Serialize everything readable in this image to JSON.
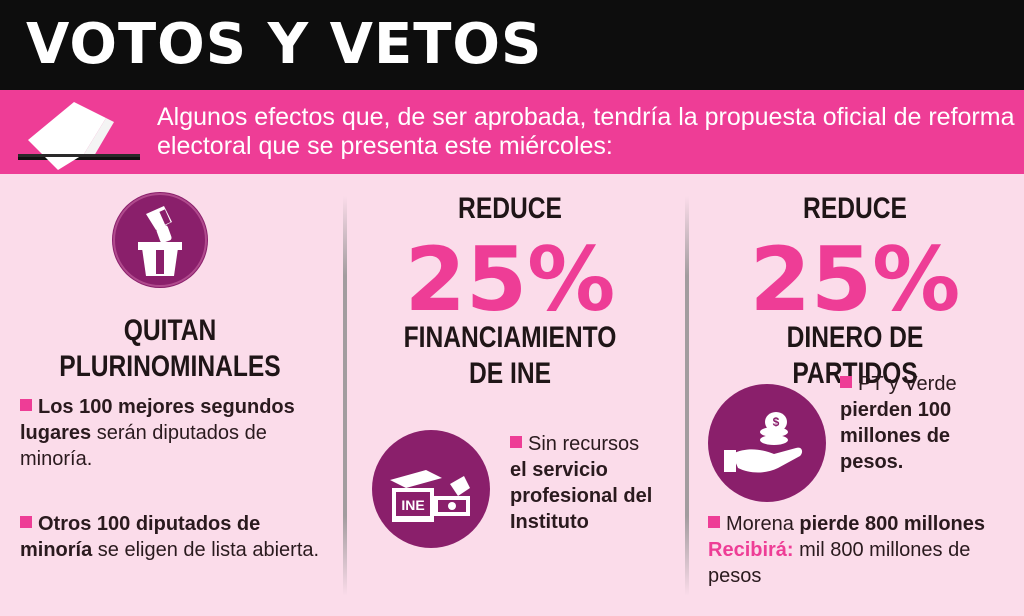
{
  "header": {
    "title": "VOTOS Y VETOS"
  },
  "banner": {
    "subtitle": "Algunos efectos que, de ser aprobada, tendría la propuesta oficial de reforma electoral que se presenta este miércoles:"
  },
  "col1": {
    "title_line1": "QUITAN",
    "title_line2": "PLURINOMINALES",
    "b1_bold": "Los 100 mejores segundos lugares",
    "b1_rest": " serán diputados de minoría.",
    "b2_bold": "Otros 100 diputados de minoría",
    "b2_rest": " se eligen de lista abierta."
  },
  "col2": {
    "kicker": "REDUCE",
    "big": "25%",
    "title_line1": "FINANCIAMIENTO",
    "title_line2": "DE INE",
    "icon_text": "INE",
    "b1_plain": "Sin recursos ",
    "b1_bold": "el servicio profesional del Instituto"
  },
  "col3": {
    "kicker": "REDUCE",
    "big": "25%",
    "title": "DINERO DE PARTIDOS",
    "b1_plain": "PT y Verde ",
    "b1_bold": "pierden 100 millones de pesos.",
    "b2_plain": "Morena ",
    "b2_bold": "pierde 800 millones",
    "b2_pink": "Recibirá:",
    "b2_rest": " mil 800 millones de pesos"
  },
  "colors": {
    "header_bg": "#0d0d0d",
    "banner_bg": "#ee3d96",
    "page_bg": "#fbdcea",
    "icon_bg": "#8a1f6b",
    "accent": "#ee3d96"
  }
}
